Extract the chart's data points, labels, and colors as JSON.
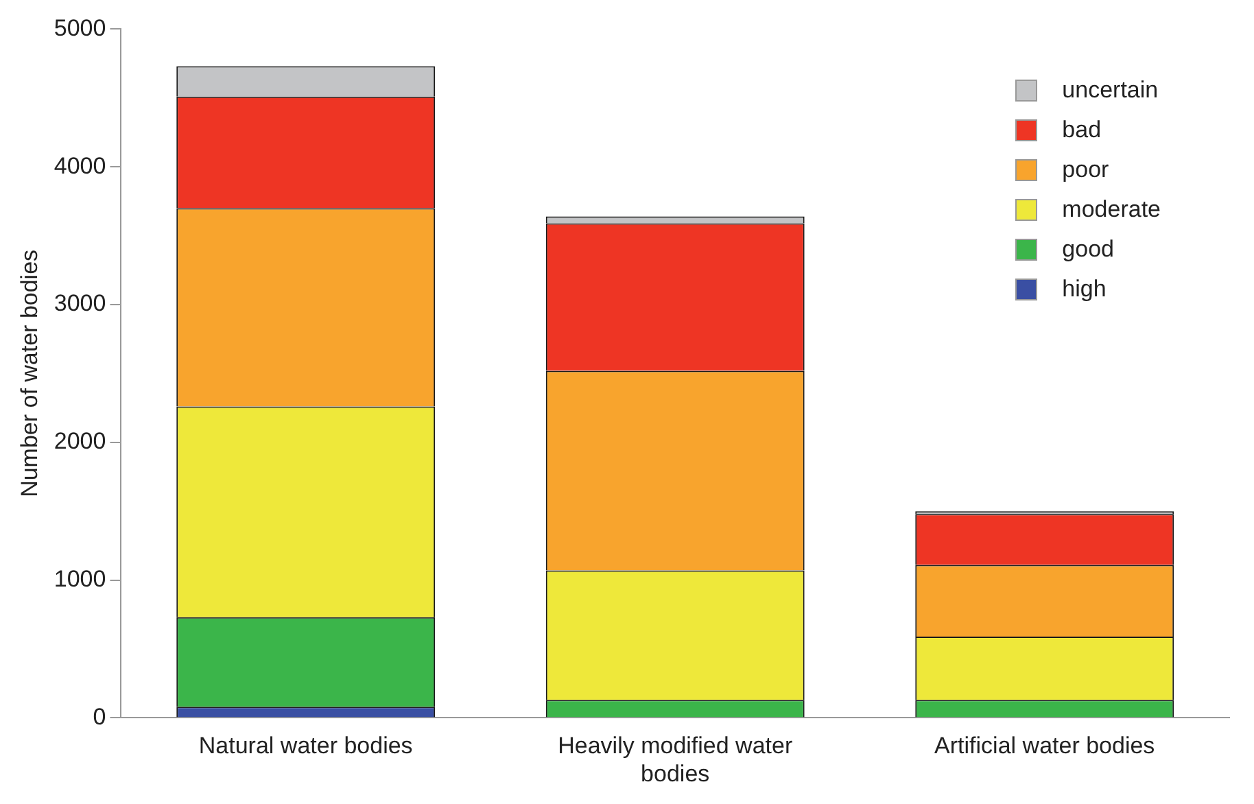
{
  "chart_data": {
    "type": "bar",
    "stacked": true,
    "ylabel": "Number of water bodies",
    "categories": [
      "Natural water bodies",
      "Heavily modified water bodies",
      "Artificial water bodies"
    ],
    "ylim": [
      0,
      5000
    ],
    "yticks": [
      0,
      1000,
      2000,
      3000,
      4000,
      5000
    ],
    "grid": false,
    "legend": "top right",
    "series": [
      {
        "name": "high",
        "color": "#3a4fa3",
        "values": [
          80,
          0,
          0
        ]
      },
      {
        "name": "good",
        "color": "#3bb54a",
        "values": [
          650,
          130,
          130
        ]
      },
      {
        "name": "moderate",
        "color": "#eee83a",
        "values": [
          1530,
          940,
          460
        ]
      },
      {
        "name": "poor",
        "color": "#f8a42d",
        "values": [
          1440,
          1450,
          520
        ]
      },
      {
        "name": "bad",
        "color": "#ee3524",
        "values": [
          810,
          1070,
          370
        ]
      },
      {
        "name": "uncertain",
        "color": "#c3c4c6",
        "values": [
          220,
          50,
          20
        ]
      }
    ]
  }
}
